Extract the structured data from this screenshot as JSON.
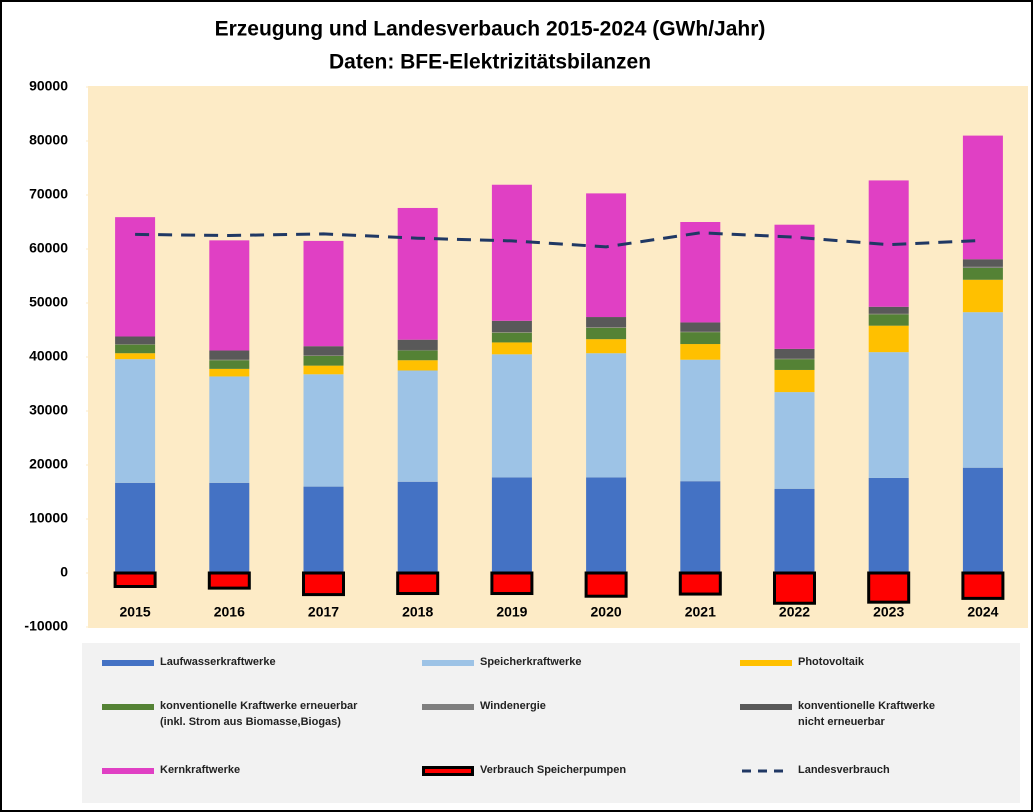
{
  "chart_data": {
    "type": "bar",
    "title": "Erzeugung und Landesverbauch 2015-2024 (GWh/Jahr)",
    "subtitle": "Daten: BFE-Elektrizitätsbilanzen",
    "categories": [
      "2015",
      "2016",
      "2017",
      "2018",
      "2019",
      "2020",
      "2021",
      "2022",
      "2023",
      "2024"
    ],
    "ylim": [
      -10000,
      90000
    ],
    "yticks": [
      -10000,
      0,
      10000,
      20000,
      30000,
      40000,
      50000,
      60000,
      70000,
      80000,
      90000
    ],
    "stacked": true,
    "series": [
      {
        "name": "Laufwasserkraftwerke",
        "color": "#4472c4",
        "values": [
          16700,
          16700,
          16000,
          16900,
          17700,
          17700,
          17000,
          15600,
          17600,
          19500
        ]
      },
      {
        "name": "Speicherkraftwerke",
        "color": "#9dc3e6",
        "values": [
          22900,
          19700,
          20800,
          20600,
          22800,
          23000,
          22500,
          17900,
          23300,
          28800
        ]
      },
      {
        "name": "Photovoltaik",
        "color": "#ffc000",
        "values": [
          1100,
          1400,
          1600,
          1900,
          2200,
          2600,
          2900,
          4100,
          4900,
          6000
        ]
      },
      {
        "name": "konventionelle Kraftwerke erneuerbar\n(inkl. Strom aus Biomasse,Biogas)",
        "color": "#548235",
        "values": [
          1600,
          1600,
          1800,
          1800,
          1800,
          2100,
          2200,
          2000,
          2100,
          2200
        ]
      },
      {
        "name": "Windenergie",
        "color": "#7f7f7f",
        "values": [
          100,
          100,
          100,
          100,
          100,
          100,
          100,
          100,
          100,
          200
        ]
      },
      {
        "name": "konventionelle Kraftwerke\nnicht erneuerbar",
        "color": "#595959",
        "values": [
          1400,
          1700,
          1700,
          1900,
          2100,
          1900,
          1700,
          1800,
          1300,
          1400
        ]
      },
      {
        "name": "Kernkraftwerke",
        "color": "#e040c4",
        "values": [
          22100,
          20400,
          19500,
          24400,
          25200,
          22900,
          18600,
          23000,
          23400,
          22900
        ]
      },
      {
        "name": "Verbrauch Speicherpumpen",
        "color": "#ff0000",
        "values": [
          -2500,
          -2800,
          -4000,
          -3800,
          -3800,
          -4300,
          -3900,
          -5600,
          -5400,
          -4700
        ]
      },
      {
        "name": "Landesverbrauch",
        "color": "#203864",
        "type": "line",
        "values": [
          62700,
          62500,
          62800,
          62000,
          61500,
          60400,
          63000,
          62200,
          60800,
          61600
        ]
      }
    ]
  }
}
